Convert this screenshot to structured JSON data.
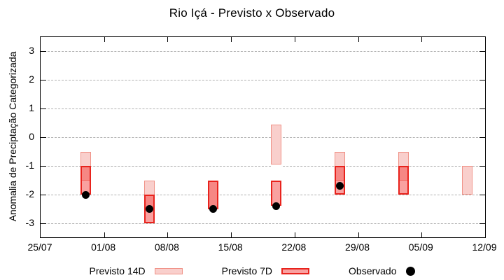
{
  "title": "Rio Içá - Previsto x Observado",
  "legend": {
    "previsto_14d": "Previsto 14D",
    "previsto_7d": "Previsto 7D",
    "observado": "Observado"
  },
  "chart_data": {
    "type": "bar",
    "subtype": "range-bars-with-observed-points",
    "title": "Rio Içá - Previsto x Observado",
    "xlabel": "",
    "ylabel": "Anomalia de Preciptação Categorizada",
    "ylim": [
      -3.5,
      3.5
    ],
    "yticks": [
      3,
      2,
      1,
      0,
      -1,
      -2,
      -3
    ],
    "grid": "horizontal-dashed",
    "legend_position": "below-plot",
    "xtick_labels": [
      "25/07",
      "01/08",
      "08/08",
      "15/08",
      "22/08",
      "29/08",
      "05/09",
      "12/09"
    ],
    "xtick_day_offsets": [
      0,
      7,
      14,
      21,
      28,
      35,
      42,
      49
    ],
    "x_total_days": 49,
    "series": [
      {
        "name": "Previsto 14D",
        "kind": "range-bar"
      },
      {
        "name": "Previsto 7D",
        "kind": "range-bar"
      },
      {
        "name": "Observado",
        "kind": "point"
      }
    ],
    "points": [
      {
        "date": "30/07",
        "day": 5,
        "previsto_14d": [
          -1.5,
          -0.5
        ],
        "previsto_7d": [
          -2.0,
          -1.0
        ],
        "observado": -2.0
      },
      {
        "date": "06/08",
        "day": 12,
        "previsto_14d": [
          -2.5,
          -1.5
        ],
        "previsto_7d": [
          -3.0,
          -2.0
        ],
        "observado": -2.5
      },
      {
        "date": "13/08",
        "day": 19,
        "previsto_14d": [
          -2.5,
          -1.5
        ],
        "previsto_7d": [
          -2.5,
          -1.5
        ],
        "observado": -2.5
      },
      {
        "date": "20/08",
        "day": 26,
        "previsto_14d": [
          -0.95,
          0.45
        ],
        "previsto_7d": [
          -2.4,
          -1.5
        ],
        "observado": -2.4
      },
      {
        "date": "27/08",
        "day": 33,
        "previsto_14d": [
          -1.5,
          -0.5
        ],
        "previsto_7d": [
          -2.0,
          -1.0
        ],
        "observado": -1.7
      },
      {
        "date": "03/09",
        "day": 40,
        "previsto_14d": [
          -1.5,
          -0.5
        ],
        "previsto_7d": [
          -2.0,
          -1.0
        ],
        "observado": null
      },
      {
        "date": "10/09",
        "day": 47,
        "previsto_14d": [
          -2.0,
          -1.0
        ],
        "previsto_7d": null,
        "observado": null
      }
    ],
    "colors": {
      "previsto_14d_fill": "rgba(237,105,95,0.32)",
      "previsto_14d_border": "#f09186",
      "previsto_7d_fill": "rgba(241,47,45,0.45)",
      "previsto_7d_border": "#e8231d",
      "observado": "#000000",
      "grid": "#b0b0b0",
      "frame": "#000000",
      "text": "#000000"
    }
  }
}
